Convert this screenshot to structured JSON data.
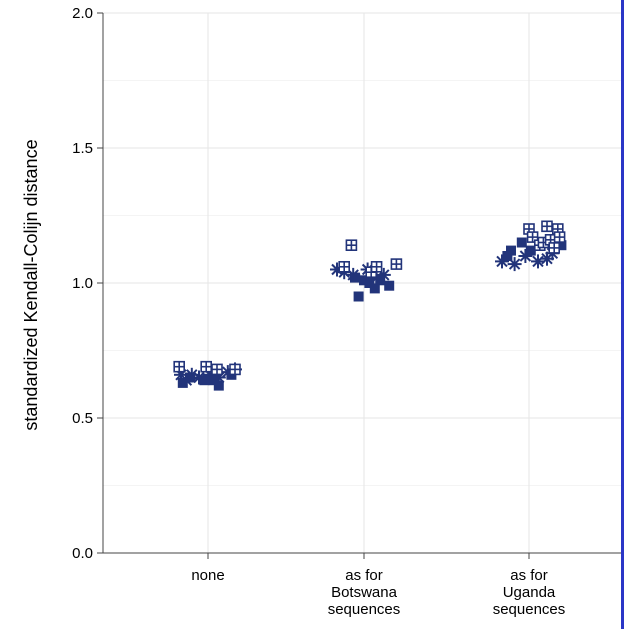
{
  "chart_data": {
    "type": "scatter",
    "title": "",
    "xlabel": "",
    "ylabel": "standardized Kendall-Colijn distance",
    "ylim": [
      0,
      2.0
    ],
    "yticks": [
      "0.0",
      "0.5",
      "1.0",
      "1.5",
      "2.0"
    ],
    "categories": [
      [
        "none"
      ],
      [
        "as for",
        "Botswana",
        "sequences"
      ],
      [
        "as for",
        "Uganda",
        "sequences"
      ]
    ],
    "grid": true,
    "marker_color": "#22347a",
    "series": [
      {
        "marker": "star",
        "points": [
          {
            "cat": 0,
            "dx": -0.3,
            "y": 0.66
          },
          {
            "cat": 0,
            "dx": -0.24,
            "y": 0.64
          },
          {
            "cat": 0,
            "dx": -0.18,
            "y": 0.66
          },
          {
            "cat": 0,
            "dx": -0.1,
            "y": 0.65
          },
          {
            "cat": 0,
            "dx": 0.02,
            "y": 0.66
          },
          {
            "cat": 0,
            "dx": 0.12,
            "y": 0.65
          },
          {
            "cat": 0,
            "dx": 0.22,
            "y": 0.67
          },
          {
            "cat": 0,
            "dx": 0.3,
            "y": 0.68
          },
          {
            "cat": 1,
            "dx": -0.3,
            "y": 1.05
          },
          {
            "cat": 1,
            "dx": -0.22,
            "y": 1.04
          },
          {
            "cat": 1,
            "dx": -0.12,
            "y": 1.03
          },
          {
            "cat": 1,
            "dx": 0.04,
            "y": 1.05
          },
          {
            "cat": 1,
            "dx": 0.14,
            "y": 1.02
          },
          {
            "cat": 1,
            "dx": 0.22,
            "y": 1.03
          },
          {
            "cat": 2,
            "dx": -0.3,
            "y": 1.08
          },
          {
            "cat": 2,
            "dx": -0.16,
            "y": 1.07
          },
          {
            "cat": 2,
            "dx": -0.04,
            "y": 1.1
          },
          {
            "cat": 2,
            "dx": 0.1,
            "y": 1.08
          },
          {
            "cat": 2,
            "dx": 0.2,
            "y": 1.09
          },
          {
            "cat": 2,
            "dx": 0.26,
            "y": 1.11
          }
        ]
      },
      {
        "marker": "filled-square",
        "points": [
          {
            "cat": 0,
            "dx": -0.28,
            "y": 0.63
          },
          {
            "cat": 0,
            "dx": -0.2,
            "y": 0.65
          },
          {
            "cat": 0,
            "dx": -0.04,
            "y": 0.64
          },
          {
            "cat": 0,
            "dx": 0.06,
            "y": 0.64
          },
          {
            "cat": 0,
            "dx": 0.12,
            "y": 0.62
          },
          {
            "cat": 0,
            "dx": 0.26,
            "y": 0.66
          },
          {
            "cat": 1,
            "dx": -0.1,
            "y": 1.02
          },
          {
            "cat": 1,
            "dx": -0.06,
            "y": 0.95
          },
          {
            "cat": 1,
            "dx": 0.0,
            "y": 1.01
          },
          {
            "cat": 1,
            "dx": 0.06,
            "y": 1.0
          },
          {
            "cat": 1,
            "dx": 0.12,
            "y": 0.98
          },
          {
            "cat": 1,
            "dx": 0.18,
            "y": 1.01
          },
          {
            "cat": 1,
            "dx": 0.28,
            "y": 0.99
          },
          {
            "cat": 2,
            "dx": -0.24,
            "y": 1.1
          },
          {
            "cat": 2,
            "dx": -0.2,
            "y": 1.12
          },
          {
            "cat": 2,
            "dx": -0.08,
            "y": 1.15
          },
          {
            "cat": 2,
            "dx": 0.02,
            "y": 1.12
          },
          {
            "cat": 2,
            "dx": 0.3,
            "y": 1.15
          },
          {
            "cat": 2,
            "dx": 0.36,
            "y": 1.14
          }
        ]
      },
      {
        "marker": "boxed-plus",
        "points": [
          {
            "cat": 0,
            "dx": -0.32,
            "y": 0.69
          },
          {
            "cat": 0,
            "dx": -0.02,
            "y": 0.69
          },
          {
            "cat": 0,
            "dx": 0.1,
            "y": 0.68
          },
          {
            "cat": 0,
            "dx": 0.3,
            "y": 0.68
          },
          {
            "cat": 1,
            "dx": -0.22,
            "y": 1.06
          },
          {
            "cat": 1,
            "dx": -0.14,
            "y": 1.14
          },
          {
            "cat": 1,
            "dx": 0.08,
            "y": 1.04
          },
          {
            "cat": 1,
            "dx": 0.14,
            "y": 1.06
          },
          {
            "cat": 1,
            "dx": 0.36,
            "y": 1.07
          },
          {
            "cat": 2,
            "dx": 0.0,
            "y": 1.2
          },
          {
            "cat": 2,
            "dx": 0.04,
            "y": 1.17
          },
          {
            "cat": 2,
            "dx": 0.12,
            "y": 1.14
          },
          {
            "cat": 2,
            "dx": 0.16,
            "y": 1.15
          },
          {
            "cat": 2,
            "dx": 0.2,
            "y": 1.21
          },
          {
            "cat": 2,
            "dx": 0.24,
            "y": 1.16
          },
          {
            "cat": 2,
            "dx": 0.28,
            "y": 1.13
          },
          {
            "cat": 2,
            "dx": 0.32,
            "y": 1.2
          },
          {
            "cat": 2,
            "dx": 0.34,
            "y": 1.17
          }
        ]
      }
    ]
  }
}
